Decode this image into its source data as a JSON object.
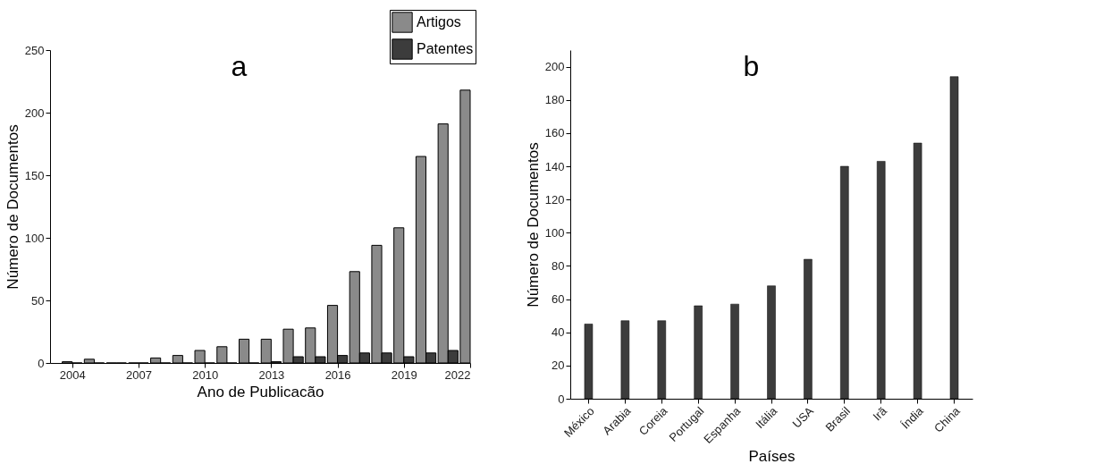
{
  "chart_data": [
    {
      "type": "bar",
      "title": "a",
      "xlabel": "Ano de Publicacão",
      "ylabel": "Número de Documentos",
      "x": [
        2004,
        2005,
        2006,
        2007,
        2008,
        2009,
        2010,
        2011,
        2012,
        2013,
        2014,
        2015,
        2016,
        2017,
        2018,
        2019,
        2020,
        2021,
        2022
      ],
      "series": [
        {
          "name": "Artigos",
          "color": "#8a8a8a",
          "values": [
            1,
            3,
            0,
            0,
            4,
            6,
            10,
            13,
            19,
            19,
            27,
            28,
            46,
            73,
            94,
            108,
            165,
            191,
            218
          ]
        },
        {
          "name": "Patentes",
          "color": "#3c3c3c",
          "values": [
            0,
            0,
            0,
            0,
            0,
            0,
            0,
            0,
            0,
            1,
            5,
            5,
            6,
            8,
            8,
            5,
            8,
            10,
            null
          ]
        }
      ],
      "xlim": [
        2003,
        2022
      ],
      "xticks": [
        2004,
        2007,
        2010,
        2013,
        2016,
        2019,
        2022
      ],
      "ylim": [
        0,
        250
      ],
      "yticks": [
        0,
        50,
        100,
        150,
        200,
        250
      ],
      "grid": false,
      "legend": "top right"
    },
    {
      "type": "bar",
      "title": "b",
      "xlabel": "Países",
      "ylabel": "Número de Documentos",
      "categories": [
        "México",
        "Arabia",
        "Coreia",
        "Portugal",
        "Espanha",
        "Itália",
        "USA",
        "Brasil",
        "Irã",
        "Índia",
        "China"
      ],
      "values": [
        45,
        47,
        47,
        56,
        57,
        68,
        84,
        140,
        143,
        154,
        194
      ],
      "color": "#3c3c3c",
      "ylim": [
        0,
        210
      ],
      "yticks": [
        0,
        20,
        40,
        60,
        80,
        100,
        120,
        140,
        160,
        180,
        200
      ],
      "grid": false,
      "legend": false
    }
  ]
}
